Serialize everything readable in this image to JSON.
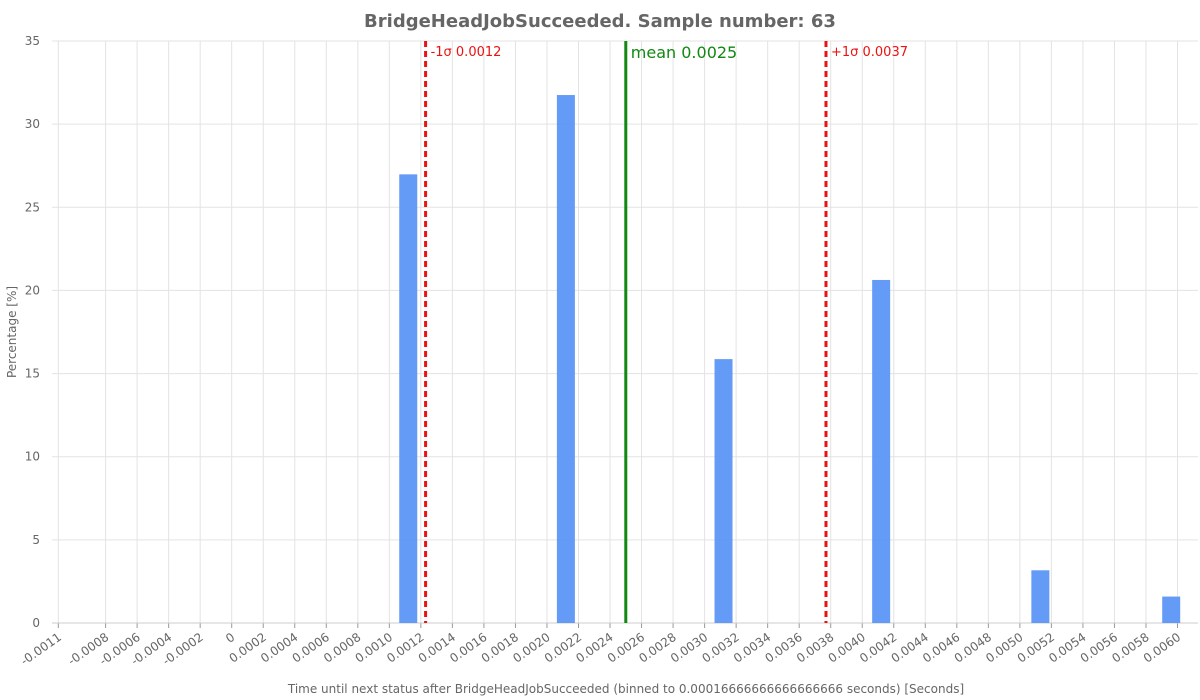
{
  "chart_data": {
    "type": "bar",
    "title": "BridgeHeadJobSucceeded. Sample number: 63",
    "x_label": "Time until next status after BridgeHeadJobSucceeded (binned to 0.00016666666666666666 seconds) [Seconds]",
    "y_label": "Percentage [%]",
    "x": [
      0.00112,
      0.00212,
      0.00312,
      0.00412,
      0.00513,
      0.00596
    ],
    "values": [
      26.98,
      31.75,
      15.87,
      20.63,
      3.17,
      1.59
    ],
    "color": "#5b96f7",
    "xlim": [
      -0.00114,
      0.00613
    ],
    "ylim": [
      0,
      35
    ],
    "yticks": [
      0,
      5,
      10,
      15,
      20,
      25,
      30,
      35
    ],
    "xticks": [
      -0.0011,
      -0.0008,
      -0.0006,
      -0.0004,
      -0.0002,
      0,
      0.0002,
      0.0004,
      0.0006,
      0.0008,
      {
        "value": 0.001,
        "label": "0.0010"
      },
      0.0012,
      0.0014,
      0.0016,
      0.0018,
      {
        "value": 0.002,
        "label": "0.0020"
      },
      0.0022,
      0.0024,
      0.0026,
      0.0028,
      {
        "value": 0.003,
        "label": "0.0030"
      },
      0.0032,
      0.0034,
      0.0036,
      0.0038,
      {
        "value": 0.004,
        "label": "0.0040"
      },
      0.0042,
      0.0044,
      0.0046,
      0.0048,
      {
        "value": 0.005,
        "label": "0.0050"
      },
      0.0052,
      0.0054,
      0.0056,
      0.0058,
      {
        "value": 0.006,
        "label": "0.0060"
      }
    ],
    "grid": true,
    "annotations": [
      {
        "label": "-1σ 0.0012",
        "x": 0.00123,
        "color": "#ee1111",
        "style": "dashed"
      },
      {
        "label": "mean 0.0025",
        "x": 0.0025,
        "color": "#118811",
        "style": "solid"
      },
      {
        "label": "+1σ 0.0037",
        "x": 0.00377,
        "color": "#ee1111",
        "style": "dashed"
      }
    ]
  }
}
